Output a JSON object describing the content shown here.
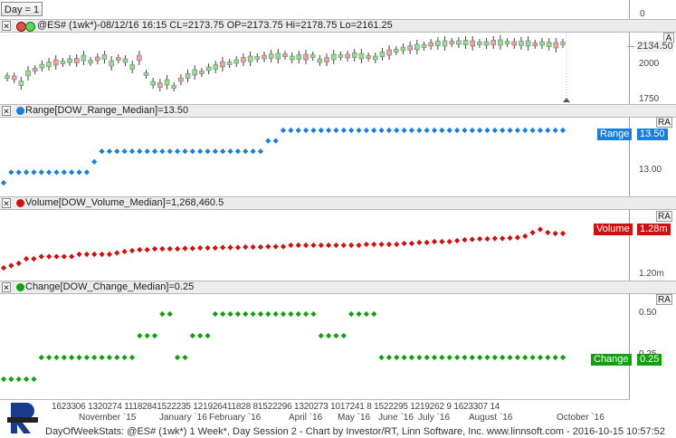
{
  "toolbar": {
    "day_label": "Day = 1"
  },
  "price_panel": {
    "title": "@ES# (1wk*)-08/12/16 16:15 CL=2173.75 OP=2173.75 Hi=2178.75 Lo=2161.25",
    "axis_ticks": [
      "0",
      "2000",
      "1750"
    ],
    "axis_button": "A",
    "last_price": "2134.50",
    "colors": {
      "up": "#90e090",
      "down": "#f0a0a0"
    }
  },
  "range_panel": {
    "title": "Range[DOW_Range_Median]=13.50",
    "label": "Range",
    "value": "13.50",
    "tick": "13.00",
    "ra": "RA",
    "color": "#1a7fdc",
    "levels": [
      0,
      1,
      1,
      1,
      1,
      1,
      1,
      1,
      1,
      1,
      1,
      1,
      2,
      3,
      3,
      3,
      3,
      3,
      3,
      3,
      3,
      3,
      3,
      3,
      3,
      3,
      3,
      3,
      3,
      3,
      3,
      3,
      3,
      3,
      3,
      4,
      4,
      5,
      5,
      5,
      5,
      5,
      5,
      5,
      5,
      5,
      5,
      5,
      5,
      5,
      5,
      5,
      5,
      5,
      5,
      5,
      5,
      5,
      5,
      5,
      5,
      5,
      5,
      5,
      5,
      5,
      5,
      5,
      5,
      5,
      5,
      5,
      5,
      5,
      5
    ]
  },
  "volume_panel": {
    "title": "Volume[DOW_Volume_Median]=1,268,460.5",
    "label": "Volume",
    "value": "1.28m",
    "tick": "1.20m",
    "ra": "RA",
    "color": "#d01010",
    "levels": [
      0,
      0.05,
      0.1,
      0.2,
      0.2,
      0.25,
      0.25,
      0.25,
      0.25,
      0.25,
      0.3,
      0.3,
      0.3,
      0.3,
      0.3,
      0.33,
      0.36,
      0.38,
      0.4,
      0.4,
      0.42,
      0.42,
      0.42,
      0.42,
      0.43,
      0.43,
      0.44,
      0.44,
      0.44,
      0.45,
      0.45,
      0.45,
      0.46,
      0.46,
      0.46,
      0.47,
      0.47,
      0.47,
      0.5,
      0.5,
      0.5,
      0.5,
      0.5,
      0.5,
      0.5,
      0.5,
      0.5,
      0.5,
      0.52,
      0.52,
      0.52,
      0.52,
      0.52,
      0.54,
      0.54,
      0.56,
      0.56,
      0.58,
      0.58,
      0.58,
      0.6,
      0.62,
      0.63,
      0.64,
      0.64,
      0.65,
      0.65,
      0.66,
      0.67,
      0.7,
      0.78,
      0.85,
      0.78,
      0.76,
      0.76
    ]
  },
  "change_panel": {
    "title": "Change[DOW_Change_Median]=0.25",
    "label": "Change",
    "value": "0.25",
    "ticks": [
      "0.50",
      "0.25"
    ],
    "ra": "RA",
    "color": "#10a010",
    "levels": [
      0,
      0,
      0,
      0,
      0,
      1,
      1,
      1,
      1,
      1,
      1,
      1,
      1,
      1,
      1,
      1,
      1,
      1,
      2,
      2,
      2,
      3,
      3,
      1,
      1,
      2,
      2,
      2,
      3,
      3,
      3,
      3,
      3,
      3,
      3,
      3,
      3,
      3,
      3,
      3,
      3,
      3,
      2,
      2,
      2,
      2,
      3,
      3,
      3,
      3,
      1,
      1,
      1,
      1,
      1,
      1,
      1,
      1,
      1,
      1,
      1,
      1,
      1,
      1,
      1,
      1,
      1,
      1,
      1,
      1,
      1,
      1,
      1,
      1,
      1
    ]
  },
  "date_axis": {
    "day_ticks": "1623306 1320274 11182841522235 121926411828 81522296 1320273 1017241 8 1522295 1219262 9 1623307 14",
    "months": [
      "November `15",
      "January `16",
      "February `16",
      "April `16",
      "May `16",
      "June `16",
      "July `16",
      "August `16",
      "October `16"
    ]
  },
  "status_line": "DayOfWeekStats: @ES# (1wk*) 1 Week*, Day Session 2 - Chart by Investor/RT, Linn Software, Inc. www.linnsoft.com - 2016-10-15 10:57:52"
}
